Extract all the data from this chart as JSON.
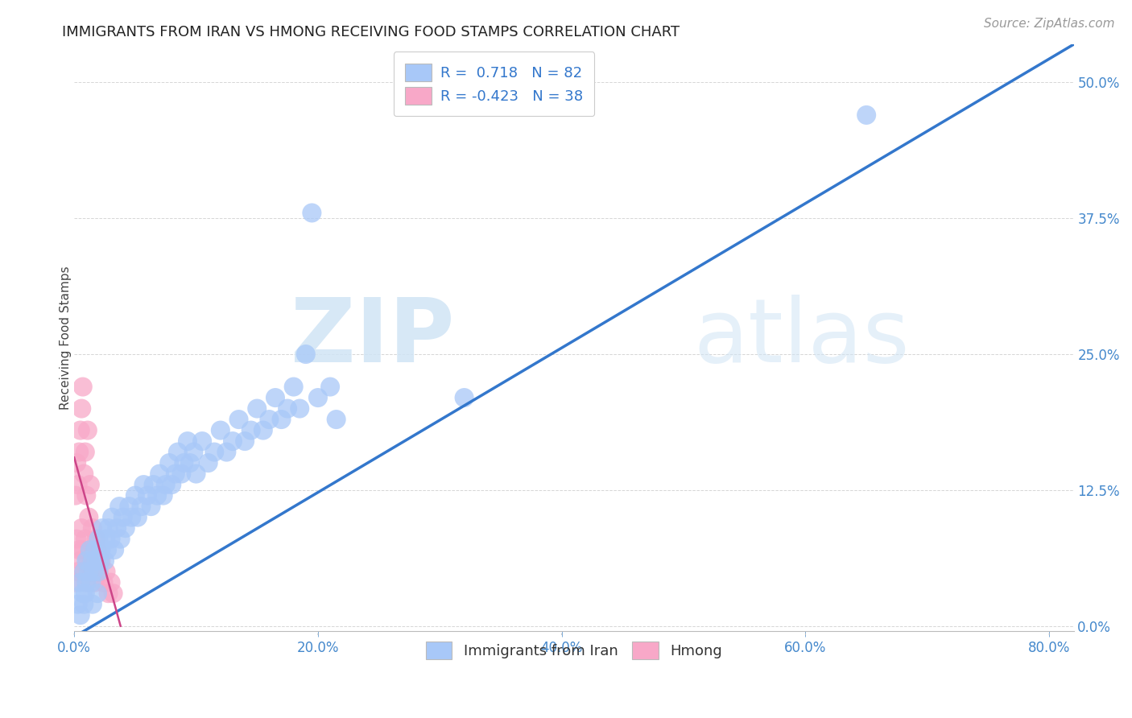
{
  "title": "IMMIGRANTS FROM IRAN VS HMONG RECEIVING FOOD STAMPS CORRELATION CHART",
  "source": "Source: ZipAtlas.com",
  "ylabel": "Receiving Food Stamps",
  "xlim": [
    0.0,
    0.82
  ],
  "ylim": [
    -0.005,
    0.535
  ],
  "ytick_vals": [
    0.0,
    0.125,
    0.25,
    0.375,
    0.5
  ],
  "xtick_vals": [
    0.0,
    0.2,
    0.4,
    0.6,
    0.8
  ],
  "watermark_zip": "ZIP",
  "watermark_atlas": "atlas",
  "iran_R": 0.718,
  "iran_N": 82,
  "hmong_R": -0.423,
  "hmong_N": 38,
  "iran_color": "#a8c8f8",
  "hmong_color": "#f8a8c8",
  "iran_line_color": "#3377cc",
  "hmong_line_color": "#cc4488",
  "background_color": "#ffffff",
  "iran_line_x0": 0.0,
  "iran_line_y0": -0.01,
  "iran_line_x1": 0.82,
  "iran_line_y1": 0.535,
  "hmong_line_x0": 0.0,
  "hmong_line_y0": 0.155,
  "hmong_line_x1": 0.038,
  "hmong_line_y1": 0.0,
  "iran_x": [
    0.003,
    0.005,
    0.005,
    0.007,
    0.008,
    0.008,
    0.009,
    0.01,
    0.01,
    0.012,
    0.013,
    0.014,
    0.015,
    0.015,
    0.016,
    0.017,
    0.018,
    0.019,
    0.02,
    0.02,
    0.021,
    0.022,
    0.023,
    0.025,
    0.026,
    0.027,
    0.028,
    0.03,
    0.031,
    0.033,
    0.035,
    0.037,
    0.038,
    0.04,
    0.042,
    0.045,
    0.047,
    0.05,
    0.052,
    0.055,
    0.057,
    0.06,
    0.063,
    0.065,
    0.068,
    0.07,
    0.073,
    0.075,
    0.078,
    0.08,
    0.083,
    0.085,
    0.088,
    0.09,
    0.093,
    0.095,
    0.098,
    0.1,
    0.105,
    0.11,
    0.115,
    0.12,
    0.125,
    0.13,
    0.135,
    0.14,
    0.145,
    0.15,
    0.155,
    0.16,
    0.165,
    0.17,
    0.175,
    0.18,
    0.185,
    0.19,
    0.195,
    0.2,
    0.21,
    0.215,
    0.32,
    0.65
  ],
  "iran_y": [
    0.02,
    0.01,
    0.04,
    0.03,
    0.05,
    0.02,
    0.03,
    0.04,
    0.06,
    0.05,
    0.07,
    0.04,
    0.06,
    0.02,
    0.05,
    0.07,
    0.06,
    0.03,
    0.05,
    0.08,
    0.06,
    0.07,
    0.09,
    0.06,
    0.08,
    0.07,
    0.09,
    0.08,
    0.1,
    0.07,
    0.09,
    0.11,
    0.08,
    0.1,
    0.09,
    0.11,
    0.1,
    0.12,
    0.1,
    0.11,
    0.13,
    0.12,
    0.11,
    0.13,
    0.12,
    0.14,
    0.12,
    0.13,
    0.15,
    0.13,
    0.14,
    0.16,
    0.14,
    0.15,
    0.17,
    0.15,
    0.16,
    0.14,
    0.17,
    0.15,
    0.16,
    0.18,
    0.16,
    0.17,
    0.19,
    0.17,
    0.18,
    0.2,
    0.18,
    0.19,
    0.21,
    0.19,
    0.2,
    0.22,
    0.2,
    0.25,
    0.38,
    0.21,
    0.22,
    0.19,
    0.21,
    0.47
  ],
  "hmong_x": [
    0.001,
    0.001,
    0.002,
    0.002,
    0.003,
    0.003,
    0.004,
    0.004,
    0.005,
    0.005,
    0.006,
    0.006,
    0.007,
    0.007,
    0.008,
    0.008,
    0.009,
    0.009,
    0.01,
    0.01,
    0.011,
    0.011,
    0.012,
    0.013,
    0.013,
    0.014,
    0.015,
    0.016,
    0.017,
    0.018,
    0.019,
    0.02,
    0.022,
    0.024,
    0.026,
    0.028,
    0.03,
    0.032
  ],
  "hmong_y": [
    0.04,
    0.12,
    0.08,
    0.15,
    0.05,
    0.13,
    0.07,
    0.16,
    0.06,
    0.18,
    0.09,
    0.2,
    0.07,
    0.22,
    0.05,
    0.14,
    0.08,
    0.16,
    0.04,
    0.12,
    0.06,
    0.18,
    0.1,
    0.07,
    0.13,
    0.05,
    0.09,
    0.06,
    0.04,
    0.08,
    0.07,
    0.05,
    0.06,
    0.04,
    0.05,
    0.03,
    0.04,
    0.03
  ]
}
